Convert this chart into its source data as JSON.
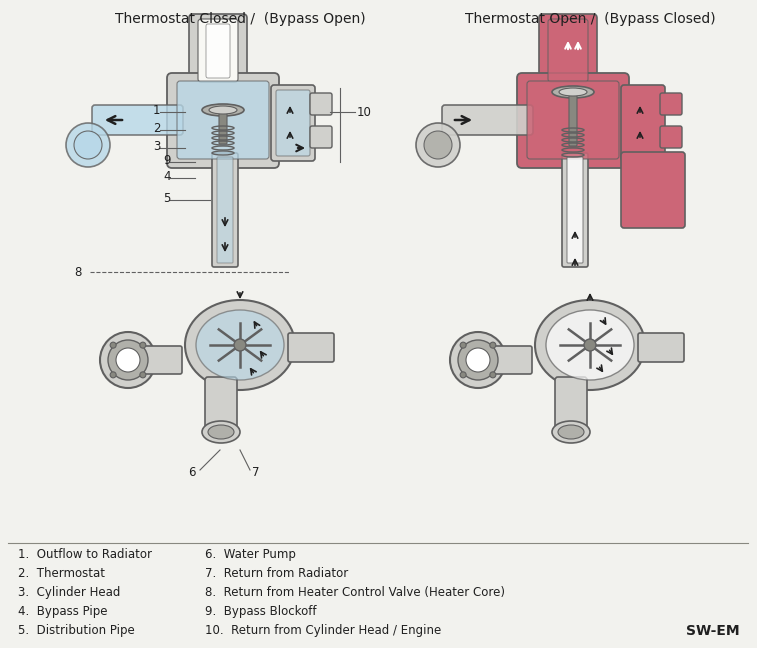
{
  "title_left": "Thermostat Closed /  (Bypass Open)",
  "title_right": "Thermostat Open /  (Bypass Closed)",
  "bg_color": "#f2f2ee",
  "legend_col1": [
    "1.  Outflow to Radiator",
    "2.  Thermostat",
    "3.  Cylinder Head",
    "4.  Bypass Pipe",
    "5.  Distribution Pipe"
  ],
  "legend_col2": [
    "6.  Water Pump",
    "7.  Return from Radiator",
    "8.  Return from Heater Control Valve (Heater Core)",
    "9.  Bypass Blockoff",
    "10.  Return from Cylinder Head / Engine"
  ],
  "watermark": "SW-EM",
  "cool_blue": "#b8d8e8",
  "hot_pink": "#cc6677",
  "light_pink": "#dd8899",
  "gray_light": "#d0d0cc",
  "gray_mid": "#b0b0aa",
  "gray_dark": "#888880",
  "outline": "#606060",
  "black": "#202020",
  "white": "#ffffff",
  "cream": "#f8f8f4",
  "title_fontsize": 10,
  "legend_fontsize": 8.5
}
